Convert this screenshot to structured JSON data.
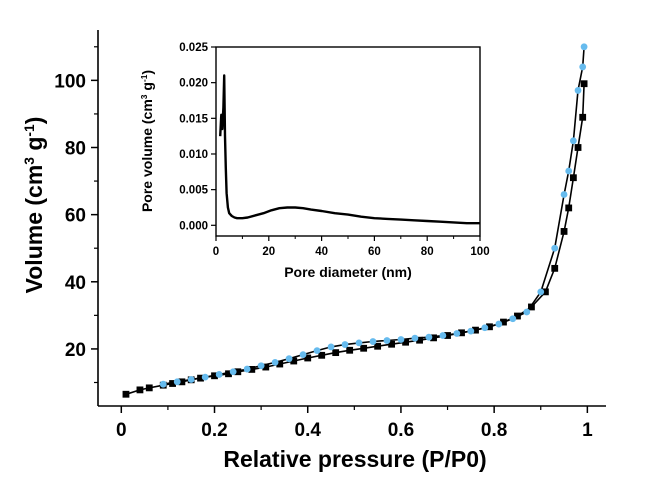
{
  "chart_data": [
    {
      "type": "line",
      "xlabel": "Relative pressure (P/P0)",
      "ylabel": {
        "prefix": "Volume (cm",
        "sup1": "3",
        "mid": " g",
        "sup2": "-1",
        "suffix": ")"
      },
      "xlim": [
        -0.05,
        1.04
      ],
      "ylim": [
        3,
        115
      ],
      "x_ticks": [
        {
          "v": 0,
          "label": "0"
        },
        {
          "v": 0.2,
          "label": "0.2"
        },
        {
          "v": 0.4,
          "label": "0.4"
        },
        {
          "v": 0.6,
          "label": "0.6"
        },
        {
          "v": 0.8,
          "label": "0.8"
        },
        {
          "v": 1,
          "label": "1"
        }
      ],
      "y_ticks": [
        {
          "v": 20,
          "label": "20"
        },
        {
          "v": 40,
          "label": "40"
        },
        {
          "v": 60,
          "label": "60"
        },
        {
          "v": 80,
          "label": "80"
        },
        {
          "v": 100,
          "label": "100"
        }
      ],
      "grid": false,
      "series": [
        {
          "color": "#000000",
          "line_color": "#000000",
          "marker": "square",
          "x": [
            0.01,
            0.04,
            0.06,
            0.09,
            0.11,
            0.13,
            0.15,
            0.17,
            0.2,
            0.23,
            0.25,
            0.28,
            0.31,
            0.34,
            0.37,
            0.4,
            0.43,
            0.46,
            0.49,
            0.52,
            0.55,
            0.58,
            0.61,
            0.64,
            0.67,
            0.7,
            0.73,
            0.76,
            0.79,
            0.82,
            0.85,
            0.88,
            0.91,
            0.93,
            0.95,
            0.96,
            0.97,
            0.98,
            0.99,
            0.993
          ],
          "y": [
            6.5,
            7.8,
            8.4,
            9.2,
            9.7,
            10.2,
            10.8,
            11.3,
            12.0,
            12.6,
            13.2,
            13.9,
            14.6,
            15.5,
            16.4,
            17.3,
            18.1,
            18.9,
            19.6,
            20.2,
            20.8,
            21.4,
            22.0,
            22.6,
            23.3,
            24.0,
            24.8,
            25.6,
            26.6,
            28.0,
            29.8,
            32.5,
            37.0,
            44.0,
            55.0,
            62.0,
            71.0,
            80.0,
            89.0,
            99.0
          ]
        },
        {
          "color": "#66bbee",
          "line_color": "#000000",
          "marker": "circle",
          "x": [
            0.993,
            0.99,
            0.98,
            0.97,
            0.96,
            0.95,
            0.93,
            0.9,
            0.87,
            0.84,
            0.81,
            0.78,
            0.75,
            0.72,
            0.69,
            0.66,
            0.63,
            0.6,
            0.57,
            0.54,
            0.51,
            0.48,
            0.45,
            0.42,
            0.39,
            0.36,
            0.33,
            0.3,
            0.27,
            0.24,
            0.21,
            0.18,
            0.15,
            0.12,
            0.09
          ],
          "y": [
            110.0,
            104.0,
            97.0,
            82.0,
            73.0,
            66.0,
            50.0,
            37.0,
            31.0,
            29.0,
            27.4,
            26.3,
            25.3,
            24.6,
            24.0,
            23.5,
            23.2,
            22.8,
            22.5,
            22.2,
            21.8,
            21.3,
            20.6,
            19.5,
            18.3,
            17.1,
            16.0,
            15.0,
            14.0,
            13.2,
            12.4,
            11.6,
            10.9,
            10.2,
            9.5
          ]
        }
      ]
    },
    {
      "type": "line",
      "xlabel": "Pore diameter (nm)",
      "ylabel": {
        "prefix": "Pore volume (cm",
        "sup1": "3",
        "mid": " g",
        "sup2": "-1",
        "suffix": ")"
      },
      "xlim": [
        0,
        100
      ],
      "ylim": [
        -0.0015,
        0.025
      ],
      "x_ticks": [
        {
          "v": 0,
          "label": "0"
        },
        {
          "v": 20,
          "label": "20"
        },
        {
          "v": 40,
          "label": "40"
        },
        {
          "v": 60,
          "label": "60"
        },
        {
          "v": 80,
          "label": "80"
        },
        {
          "v": 100,
          "label": "100"
        }
      ],
      "y_ticks": [
        {
          "v": 0,
          "label": "0.000"
        },
        {
          "v": 0.005,
          "label": "0.005"
        },
        {
          "v": 0.01,
          "label": "0.010"
        },
        {
          "v": 0.015,
          "label": "0.015"
        },
        {
          "v": 0.02,
          "label": "0.020"
        },
        {
          "v": 0.025,
          "label": "0.025"
        }
      ],
      "grid": false,
      "series": [
        {
          "color": "#000000",
          "x": [
            1.6,
            2.0,
            2.4,
            2.8,
            3.1,
            3.4,
            3.7,
            4.0,
            4.5,
            5.0,
            6.0,
            7.0,
            8.0,
            10.0,
            12.0,
            15.0,
            18.0,
            21.0,
            24.0,
            27.0,
            30.0,
            33.0,
            36.0,
            40.0,
            45.0,
            50.0,
            55.0,
            60.0,
            65.0,
            70.0,
            75.0,
            80.0,
            85.0,
            90.0,
            95.0,
            100.0
          ],
          "y": [
            0.0125,
            0.0155,
            0.0135,
            0.0165,
            0.021,
            0.0125,
            0.008,
            0.0045,
            0.0025,
            0.0017,
            0.0013,
            0.0011,
            0.001,
            0.001,
            0.0011,
            0.0014,
            0.0017,
            0.0021,
            0.0024,
            0.0025,
            0.0025,
            0.0024,
            0.0022,
            0.002,
            0.0017,
            0.0015,
            0.0012,
            0.001,
            0.0009,
            0.0008,
            0.0007,
            0.0006,
            0.0005,
            0.0004,
            0.0003,
            0.0003
          ]
        }
      ]
    }
  ]
}
